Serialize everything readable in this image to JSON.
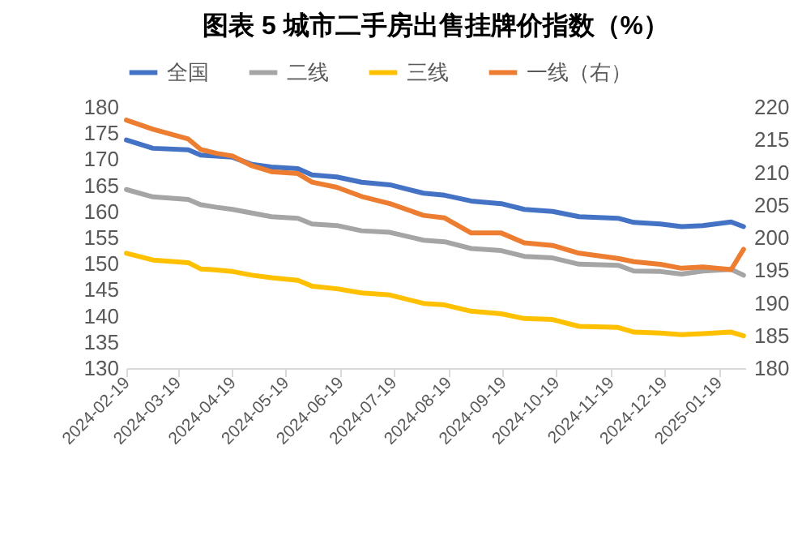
{
  "chart_data": {
    "type": "line",
    "title": "图表 5  城市二手房出售挂牌价指数（%）",
    "x": [
      "2024-02-19",
      "2024-03-05",
      "2024-03-25",
      "2024-04-01",
      "2024-04-10",
      "2024-04-19",
      "2024-04-30",
      "2024-05-11",
      "2024-05-26",
      "2024-06-03",
      "2024-06-17",
      "2024-07-01",
      "2024-07-17",
      "2024-08-05",
      "2024-08-17",
      "2024-09-01",
      "2024-09-18",
      "2024-10-01",
      "2024-10-17",
      "2024-11-01",
      "2024-11-23",
      "2024-12-02",
      "2024-12-17",
      "2024-12-29",
      "2025-01-10",
      "2025-01-26",
      "2025-02-02"
    ],
    "series": [
      {
        "name": "全国",
        "color": "#4472c4",
        "values": [
          173.7,
          172.1,
          171.8,
          170.8,
          170.6,
          170.4,
          169.0,
          168.5,
          168.2,
          167,
          166.6,
          165.6,
          165.1,
          163.5,
          163.1,
          162,
          161.5,
          160.4,
          160,
          159,
          158.7,
          157.9,
          157.6,
          157.1,
          157.3,
          158,
          157.1
        ]
      },
      {
        "name": "二线",
        "color": "#a5a5a5",
        "values": [
          164.2,
          162.8,
          162.3,
          161.3,
          160.8,
          160.4,
          159.7,
          159,
          158.7,
          157.6,
          157.3,
          156.3,
          156.0,
          154.5,
          154.2,
          152.9,
          152.5,
          151.4,
          151.1,
          149.9,
          149.7,
          148.6,
          148.5,
          148,
          148.6,
          148.9,
          147.8
        ]
      },
      {
        "name": "三线",
        "color": "#ffc000",
        "values": [
          152,
          150.7,
          150.2,
          149,
          148.8,
          148.5,
          147.8,
          147.3,
          146.8,
          145.7,
          145.2,
          144.4,
          144.0,
          142.4,
          142.1,
          140.9,
          140.4,
          139.5,
          139.3,
          138,
          137.8,
          136.9,
          136.7,
          136.4,
          136.6,
          136.9,
          136.2
        ]
      },
      {
        "name": "一线（右）",
        "color": "#ed7d31",
        "axis": "y2",
        "values": [
          218,
          216.6,
          215.1,
          213.5,
          212.9,
          212.5,
          211,
          210.1,
          209.8,
          208.5,
          207.7,
          206.3,
          205.2,
          203.4,
          203,
          200.7,
          200.7,
          199.2,
          198.8,
          197.6,
          196.8,
          196.3,
          195.9,
          195.3,
          195.5,
          195.1,
          198.2
        ]
      }
    ],
    "xlim": [
      "2024-02-19",
      "2025-02-03"
    ],
    "xticks": [
      "2024-02-19",
      "2024-03-19",
      "2024-04-19",
      "2024-05-19",
      "2024-06-19",
      "2024-07-19",
      "2024-08-19",
      "2024-09-19",
      "2024-10-19",
      "2024-11-19",
      "2024-12-19",
      "2025-01-19"
    ],
    "ylim": [
      130,
      180
    ],
    "yticks": [
      130,
      135,
      140,
      145,
      150,
      155,
      160,
      165,
      170,
      175,
      180
    ],
    "y2lim": [
      180,
      220
    ],
    "y2ticks": [
      180,
      185,
      190,
      195,
      200,
      205,
      210,
      215,
      220
    ],
    "legend": "top",
    "grid": false
  }
}
